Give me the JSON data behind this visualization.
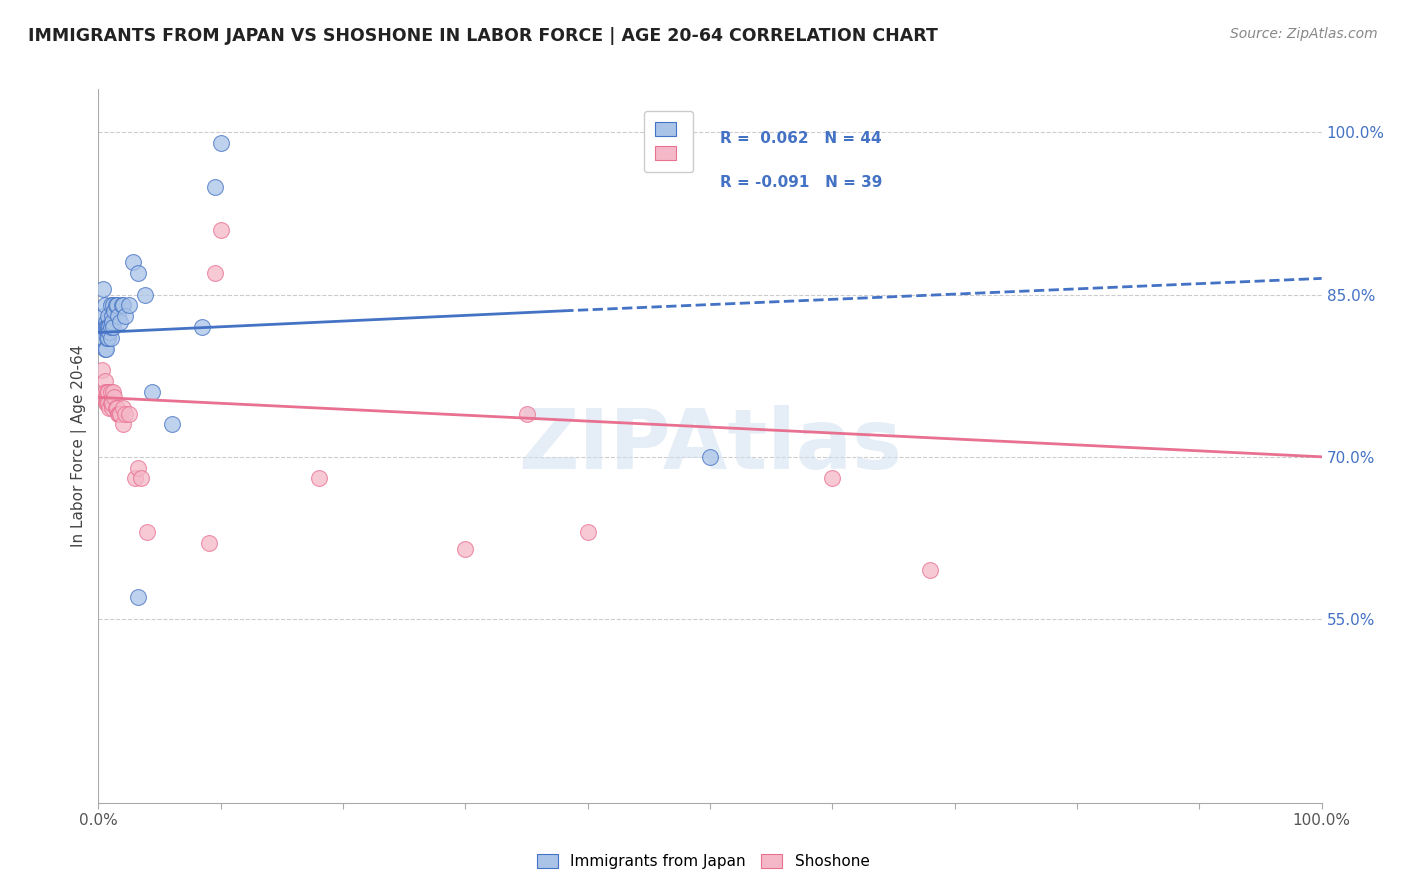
{
  "title": "IMMIGRANTS FROM JAPAN VS SHOSHONE IN LABOR FORCE | AGE 20-64 CORRELATION CHART",
  "source": "Source: ZipAtlas.com",
  "ylabel": "In Labor Force | Age 20-64",
  "xmin": 0.0,
  "xmax": 1.0,
  "ymin": 0.38,
  "ymax": 1.04,
  "xticks": [
    0.0,
    0.1,
    0.2,
    0.3,
    0.4,
    0.5,
    0.6,
    0.7,
    0.8,
    0.9,
    1.0
  ],
  "xticklabels": [
    "0.0%",
    "",
    "",
    "",
    "",
    "",
    "",
    "",
    "",
    "",
    "100.0%"
  ],
  "yticks_right": [
    0.55,
    0.7,
    0.85,
    1.0
  ],
  "yticklabels_right": [
    "55.0%",
    "70.0%",
    "85.0%",
    "100.0%"
  ],
  "grid_color": "#cccccc",
  "background_color": "#ffffff",
  "watermark": "ZIPAtlas",
  "japan_color": "#aac4e8",
  "shoshone_color": "#f4b8c8",
  "japan_R": 0.062,
  "japan_N": 44,
  "shoshone_R": -0.091,
  "shoshone_N": 39,
  "japan_line_color": "#4472c4",
  "shoshone_line_color": "#e87090",
  "japan_line_start_x": 0.0,
  "japan_line_start_y": 0.815,
  "japan_line_solid_end_x": 0.38,
  "japan_line_solid_end_y": 0.835,
  "japan_line_dash_end_x": 1.0,
  "japan_line_dash_end_y": 0.865,
  "shoshone_line_start_x": 0.0,
  "shoshone_line_start_y": 0.755,
  "shoshone_line_end_x": 1.0,
  "shoshone_line_end_y": 0.7,
  "japan_scatter_x": [
    0.003,
    0.004,
    0.004,
    0.004,
    0.005,
    0.005,
    0.005,
    0.006,
    0.006,
    0.006,
    0.007,
    0.007,
    0.007,
    0.008,
    0.008,
    0.008,
    0.009,
    0.009,
    0.01,
    0.01,
    0.01,
    0.011,
    0.011,
    0.012,
    0.012,
    0.013,
    0.014,
    0.015,
    0.016,
    0.018,
    0.019,
    0.02,
    0.022,
    0.025,
    0.028,
    0.032,
    0.038,
    0.044,
    0.06,
    0.5,
    0.085,
    0.095,
    0.1,
    0.032
  ],
  "japan_scatter_y": [
    0.82,
    0.83,
    0.81,
    0.855,
    0.84,
    0.82,
    0.8,
    0.825,
    0.82,
    0.8,
    0.82,
    0.815,
    0.81,
    0.83,
    0.82,
    0.81,
    0.82,
    0.815,
    0.81,
    0.84,
    0.82,
    0.83,
    0.825,
    0.84,
    0.82,
    0.835,
    0.84,
    0.84,
    0.83,
    0.825,
    0.84,
    0.84,
    0.83,
    0.84,
    0.88,
    0.87,
    0.85,
    0.76,
    0.73,
    0.7,
    0.82,
    0.95,
    0.99,
    0.57
  ],
  "shoshone_scatter_x": [
    0.003,
    0.004,
    0.005,
    0.005,
    0.006,
    0.006,
    0.007,
    0.007,
    0.008,
    0.008,
    0.009,
    0.01,
    0.01,
    0.011,
    0.011,
    0.012,
    0.013,
    0.014,
    0.015,
    0.016,
    0.017,
    0.018,
    0.02,
    0.02,
    0.022,
    0.025,
    0.03,
    0.032,
    0.035,
    0.04,
    0.09,
    0.095,
    0.1,
    0.18,
    0.3,
    0.35,
    0.4,
    0.6,
    0.68
  ],
  "shoshone_scatter_y": [
    0.78,
    0.755,
    0.77,
    0.76,
    0.755,
    0.75,
    0.76,
    0.75,
    0.76,
    0.75,
    0.745,
    0.76,
    0.75,
    0.745,
    0.75,
    0.76,
    0.755,
    0.745,
    0.745,
    0.74,
    0.74,
    0.74,
    0.745,
    0.73,
    0.74,
    0.74,
    0.68,
    0.69,
    0.68,
    0.63,
    0.62,
    0.87,
    0.91,
    0.68,
    0.615,
    0.74,
    0.63,
    0.68,
    0.595
  ]
}
